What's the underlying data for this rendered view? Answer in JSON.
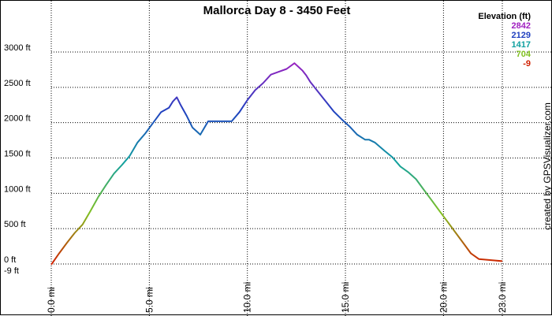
{
  "chart_data": {
    "type": "line",
    "title": "Mallorca Day 8 - 3450 Feet",
    "xlabel": "",
    "ylabel": "",
    "x_unit": "mi",
    "y_unit": "ft",
    "xlim": [
      0,
      23.0
    ],
    "ylim": [
      -9,
      3450
    ],
    "grid": true,
    "x_ticks": [
      {
        "value": 0,
        "label": "0.0 mi"
      },
      {
        "value": 5,
        "label": "5.0 mi"
      },
      {
        "value": 10,
        "label": "10.0 mi"
      },
      {
        "value": 15,
        "label": "15.0 mi"
      },
      {
        "value": 20,
        "label": "20.0 mi"
      },
      {
        "value": 23,
        "label": "23.0 mi"
      }
    ],
    "y_ticks": [
      {
        "value": -9,
        "label": "-9 ft"
      },
      {
        "value": 0,
        "label": "0 ft"
      },
      {
        "value": 500,
        "label": "500 ft"
      },
      {
        "value": 1000,
        "label": "1000 ft"
      },
      {
        "value": 1500,
        "label": "1500 ft"
      },
      {
        "value": 2000,
        "label": "2000 ft"
      },
      {
        "value": 2500,
        "label": "2500 ft"
      },
      {
        "value": 3000,
        "label": "3000 ft"
      }
    ],
    "legend": {
      "title": "Elevation (ft)",
      "placement": "top-right",
      "items": [
        {
          "label": "2842",
          "color": "#a020c0"
        },
        {
          "label": "2129",
          "color": "#2040c0"
        },
        {
          "label": "1417",
          "color": "#10a0a0"
        },
        {
          "label": "704",
          "color": "#80c020"
        },
        {
          "label": "-9",
          "color": "#d02000"
        }
      ]
    },
    "series": [
      {
        "x": [
          0,
          0.4,
          0.8,
          1.2,
          1.6,
          2.0,
          2.4,
          2.8,
          3.2,
          3.6,
          4.0,
          4.4,
          4.8,
          5.2,
          5.6,
          6.0,
          6.2,
          6.4,
          6.6,
          6.9,
          7.2,
          7.6,
          8.0,
          8.4,
          8.8,
          9.2,
          9.6,
          10.0,
          10.4,
          10.8,
          11.2,
          11.6,
          12.0,
          12.4,
          12.8,
          13.0,
          13.2,
          13.6,
          14.0,
          14.4,
          14.8,
          15.2,
          15.6,
          16.0,
          16.2,
          16.5,
          17.0,
          17.4,
          17.8,
          18.2,
          18.6,
          19.0,
          19.4,
          19.8,
          20.2,
          20.6,
          21.0,
          21.4,
          21.8,
          22.2,
          22.6,
          23.0
        ],
        "y": [
          -9,
          150,
          300,
          440,
          560,
          750,
          950,
          1120,
          1280,
          1400,
          1530,
          1720,
          1850,
          2000,
          2150,
          2210,
          2300,
          2360,
          2250,
          2100,
          1930,
          1830,
          2020,
          2020,
          2020,
          2020,
          2150,
          2320,
          2460,
          2560,
          2680,
          2720,
          2760,
          2842,
          2740,
          2670,
          2580,
          2440,
          2300,
          2160,
          2050,
          1950,
          1830,
          1760,
          1760,
          1720,
          1600,
          1510,
          1380,
          1300,
          1200,
          1050,
          900,
          750,
          600,
          450,
          300,
          150,
          70,
          60,
          50,
          40
        ]
      }
    ]
  },
  "credit": "created by GPSVisualizer.com"
}
